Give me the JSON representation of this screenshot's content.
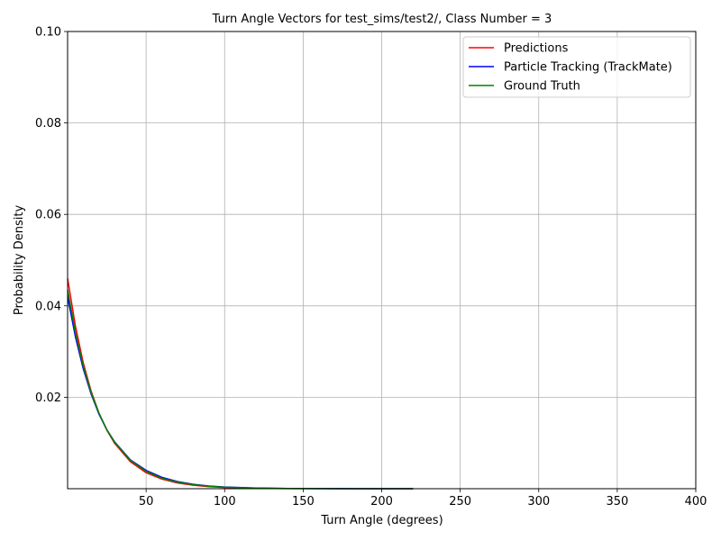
{
  "chart_data": {
    "type": "line",
    "title": "Turn Angle Vectors for test_sims/test2/, Class Number = 3",
    "xlabel": "Turn Angle (degrees)",
    "ylabel": "Probability Density",
    "xlim": [
      0,
      400
    ],
    "ylim": [
      0,
      0.1
    ],
    "xticks": [
      50,
      100,
      150,
      200,
      250,
      300,
      350,
      400
    ],
    "xtick_labels": [
      "50",
      "100",
      "150",
      "200",
      "250",
      "300",
      "350",
      "400"
    ],
    "yticks": [
      0.02,
      0.04,
      0.06,
      0.08,
      0.1
    ],
    "ytick_labels": [
      "0.02",
      "0.04",
      "0.06",
      "0.08",
      "0.10"
    ],
    "grid": true,
    "legend_position": "top-right",
    "series": [
      {
        "name": "Predictions",
        "color": "#ff0000",
        "x": [
          0,
          5,
          10,
          15,
          20,
          25,
          30,
          40,
          50,
          60,
          70,
          80,
          90,
          100,
          120,
          140,
          160,
          180,
          200,
          220
        ],
        "y": [
          0.046,
          0.0355,
          0.0275,
          0.0213,
          0.0165,
          0.0128,
          0.0099,
          0.0059,
          0.0035,
          0.0021,
          0.00126,
          0.00075,
          0.00045,
          0.00027,
          0.0001,
          3.5e-05,
          1.3e-05,
          5e-06,
          2e-06,
          7e-07
        ]
      },
      {
        "name": "Particle Tracking (TrackMate)",
        "color": "#0000ff",
        "x": [
          0,
          5,
          10,
          15,
          20,
          25,
          30,
          40,
          50,
          60,
          70,
          80,
          90,
          100,
          120,
          140,
          160,
          180,
          200,
          220
        ],
        "y": [
          0.042,
          0.0332,
          0.0262,
          0.0207,
          0.0163,
          0.0129,
          0.0102,
          0.0063,
          0.004,
          0.0025,
          0.00155,
          0.00097,
          0.0006,
          0.00038,
          0.00015,
          6e-05,
          2.3e-05,
          9e-06,
          3.6e-06,
          1.4e-06
        ]
      },
      {
        "name": "Ground Truth",
        "color": "#008000",
        "x": [
          0,
          5,
          10,
          15,
          20,
          25,
          30,
          40,
          50,
          60,
          70,
          80,
          90,
          100,
          120,
          140,
          160,
          180,
          200,
          220
        ],
        "y": [
          0.0435,
          0.0341,
          0.0268,
          0.021,
          0.0165,
          0.0129,
          0.0101,
          0.0062,
          0.0038,
          0.0023,
          0.00143,
          0.00088,
          0.00054,
          0.00033,
          0.00013,
          5e-05,
          1.9e-05,
          7.3e-06,
          2.8e-06,
          1.1e-06
        ]
      }
    ]
  }
}
